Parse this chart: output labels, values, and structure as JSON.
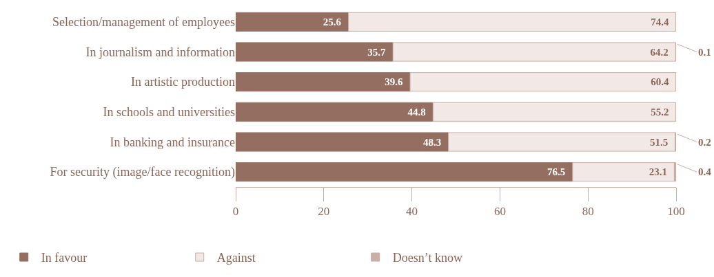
{
  "chart_data": {
    "type": "bar",
    "orientation": "horizontal",
    "stacked": true,
    "categories": [
      "Selection/management of employees",
      "In journalism and information",
      "In artistic production",
      "In schools and universities",
      "In banking and insurance",
      "For security (image/face recognition)"
    ],
    "series": [
      {
        "name": "In favour",
        "color": "#956e62",
        "values": [
          25.6,
          35.7,
          39.6,
          44.8,
          48.3,
          76.5
        ],
        "value_labels": [
          "25.6",
          "35.7",
          "39.6",
          "44.8",
          "48.3",
          "76.5"
        ]
      },
      {
        "name": "Against",
        "color": "#f2e9e6",
        "values": [
          74.4,
          64.2,
          60.4,
          55.2,
          51.5,
          23.1
        ],
        "value_labels": [
          "74.4",
          "64.2",
          "60.4",
          "55.2",
          "51.5",
          "23.1"
        ]
      },
      {
        "name": "Doesn’t know",
        "color": "#c8b0a8",
        "values": [
          0,
          0.1,
          0,
          0,
          0.2,
          0.4
        ],
        "value_labels": [
          null,
          "0.1",
          null,
          null,
          "0.2",
          "0.4"
        ]
      }
    ],
    "xlim": [
      0,
      100
    ],
    "xticks": [
      0,
      20,
      40,
      60,
      80,
      100
    ],
    "grid": false,
    "legend": "bottom"
  }
}
